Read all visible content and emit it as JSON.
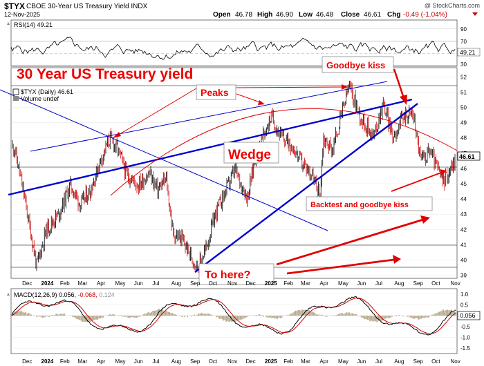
{
  "header": {
    "symbol": "$TYX",
    "description": "CBOE 30-Year US Treasury Yield INDX",
    "credit": "@ StockCharts.com",
    "date": "12-Nov-2025",
    "open_label": "Open",
    "open": "46.78",
    "high_label": "High",
    "high": "46.90",
    "low_label": "Low",
    "low": "46.48",
    "close_label": "Close",
    "close": "46.61",
    "chg_label": "Chg",
    "chg": "-0.49 (-1.04%)"
  },
  "rsi_panel": {
    "label": "RSI(14) 49.21",
    "current": "49.21",
    "ticks": [
      "90",
      "70",
      "50",
      "30",
      "10"
    ],
    "overbought": 70,
    "oversold": 30,
    "line_color": "#000000"
  },
  "main_panel": {
    "legend_symbol": "$TYX (Daily) 46.61",
    "legend_volume": "Volume undef",
    "price_label": "46.61",
    "ticks": [
      "52",
      "51",
      "50",
      "49",
      "48",
      "47",
      "46",
      "45",
      "44",
      "43",
      "42",
      "41",
      "40",
      "39"
    ],
    "candle_up_color": "#000000",
    "candle_down_color": "#cc0000",
    "trendline_color": "#0000cc",
    "annotation_color": "#e00000"
  },
  "annotations": {
    "title": "30 Year US Treasury yield",
    "peaks": "Peaks",
    "wedge": "Wedge",
    "goodbye_kiss": "Goodbye kiss",
    "backtest": "Backtest and goodbye kiss",
    "to_here": "To here?"
  },
  "macd_panel": {
    "label": "MACD(12,26,9) 0.056, -0.068, 0.124",
    "label_main": "MACD(12,26,9) 0.056,",
    "label_signal": "-0.068,",
    "label_hist": "0.124",
    "current": "0.056",
    "ticks": [
      "1.0",
      "0.5",
      "0.0",
      "-0.5",
      "-1.0",
      "-1.5"
    ]
  },
  "x_axis": {
    "labels": [
      "Dec",
      "2024",
      "Feb",
      "Mar",
      "Apr",
      "May",
      "Jun",
      "Jul",
      "Aug",
      "Sep",
      "Oct",
      "Nov",
      "Dec",
      "2025",
      "Feb",
      "Mar",
      "Apr",
      "May",
      "Jun",
      "Jul",
      "Aug",
      "Sep",
      "Oct",
      "Nov"
    ]
  },
  "chart_data": {
    "type": "candlestick",
    "title": "$TYX CBOE 30-Year US Treasury Yield INDX",
    "x_range": [
      "2023-11",
      "2025-11-12"
    ],
    "ylim": [
      38.8,
      52.6
    ],
    "close_path": [
      [
        "2023-11-20",
        47.4
      ],
      [
        "2023-12-05",
        44.5
      ],
      [
        "2023-12-27",
        39.6
      ],
      [
        "2024-01-12",
        42.0
      ],
      [
        "2024-02-01",
        43.0
      ],
      [
        "2024-02-20",
        44.9
      ],
      [
        "2024-03-08",
        43.6
      ],
      [
        "2024-03-25",
        44.7
      ],
      [
        "2024-04-10",
        46.6
      ],
      [
        "2024-04-25",
        48.0
      ],
      [
        "2024-05-08",
        47.2
      ],
      [
        "2024-05-22",
        45.6
      ],
      [
        "2024-06-10",
        44.9
      ],
      [
        "2024-06-28",
        45.7
      ],
      [
        "2024-07-12",
        44.6
      ],
      [
        "2024-07-26",
        45.3
      ],
      [
        "2024-08-06",
        41.7
      ],
      [
        "2024-08-20",
        41.4
      ],
      [
        "2024-09-05",
        40.2
      ],
      [
        "2024-09-16",
        39.5
      ],
      [
        "2024-10-01",
        41.0
      ],
      [
        "2024-10-15",
        43.1
      ],
      [
        "2024-10-31",
        44.5
      ],
      [
        "2024-11-15",
        45.9
      ],
      [
        "2024-12-06",
        44.1
      ],
      [
        "2024-12-20",
        47.0
      ],
      [
        "2025-01-14",
        49.4
      ],
      [
        "2025-01-31",
        48.0
      ],
      [
        "2025-02-14",
        47.7
      ],
      [
        "2025-03-04",
        46.4
      ],
      [
        "2025-03-20",
        45.7
      ],
      [
        "2025-04-04",
        44.2
      ],
      [
        "2025-04-09",
        48.0
      ],
      [
        "2025-04-24",
        47.2
      ],
      [
        "2025-05-21",
        51.4
      ],
      [
        "2025-06-10",
        49.3
      ],
      [
        "2025-07-01",
        48.1
      ],
      [
        "2025-07-16",
        50.3
      ],
      [
        "2025-08-01",
        48.1
      ],
      [
        "2025-08-20",
        49.5
      ],
      [
        "2025-09-03",
        49.6
      ],
      [
        "2025-09-16",
        46.5
      ],
      [
        "2025-10-01",
        47.2
      ],
      [
        "2025-10-22",
        45.1
      ],
      [
        "2025-11-12",
        46.61
      ]
    ],
    "series": [
      {
        "name": "$TYX (Daily)",
        "last": 46.61
      }
    ],
    "annotations": [
      "30 Year US Treasury yield",
      "Peaks",
      "Wedge",
      "Goodbye kiss",
      "Backtest and goodbye kiss",
      "To here?"
    ],
    "indicators": {
      "RSI(14)": 49.21,
      "MACD": [
        0.056,
        -0.068,
        0.124
      ]
    }
  }
}
